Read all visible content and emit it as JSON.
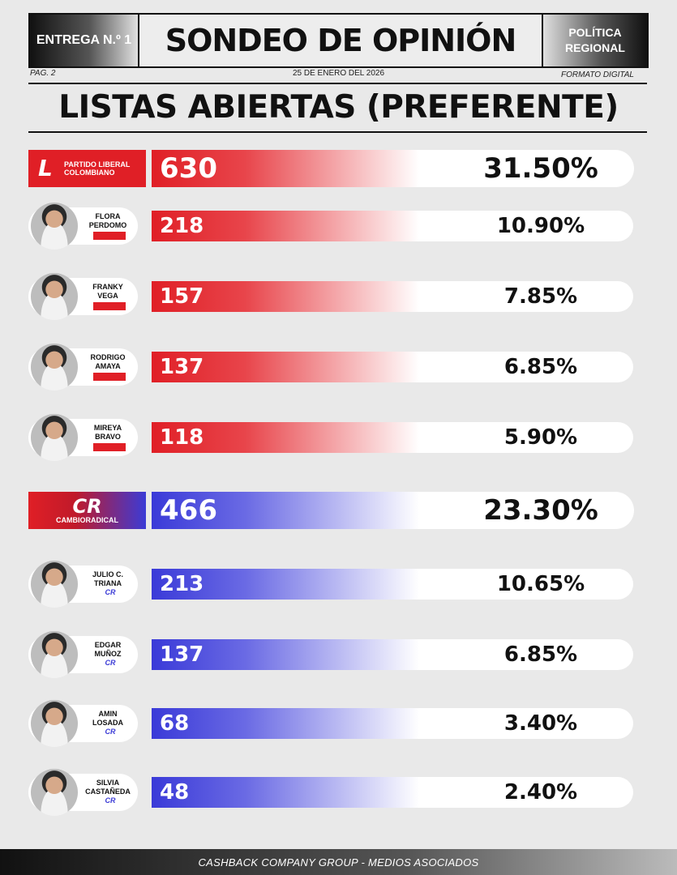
{
  "header": {
    "issue": "ENTREGA N.º 1",
    "title": "SONDEO DE OPINIÓN",
    "section_line1": "POLÍTICA",
    "section_line2": "REGIONAL",
    "page": "PAG. 2",
    "date": "25 DE ENERO DEL 2026",
    "format": "FORMATO DIGITAL"
  },
  "main_title": "LISTAS ABIERTAS (PREFERENTE)",
  "logos": {
    "liberal_line1": "PARTIDO LIBERAL",
    "liberal_line2": "COLOMBIANO",
    "liberal_mark": "L",
    "cambio_mark": "CR",
    "cambio_name": "CAMBIORADICAL"
  },
  "colors": {
    "liberal": "#e01f26",
    "cambio": "#3a3ad8"
  },
  "chart_data": {
    "type": "bar",
    "categories": [
      "PARTIDO LIBERAL COLOMBIANO",
      "FLORA PERDOMO",
      "FRANKY VEGA",
      "RODRIGO AMAYA",
      "MIREYA BRAVO",
      "CAMBIO RADICAL",
      "JULIO C. TRIANA",
      "EDGAR MUÑOZ",
      "AMIN LOSADA",
      "SILVIA CASTAÑEDA"
    ],
    "values": [
      630,
      218,
      157,
      137,
      118,
      466,
      213,
      137,
      68,
      48
    ],
    "percentages": [
      "31.50%",
      "10.90%",
      "7.85%",
      "6.85%",
      "5.90%",
      "23.30%",
      "10.65%",
      "6.85%",
      "3.40%",
      "2.40%"
    ],
    "rows": [
      {
        "kind": "party",
        "party": "liberal",
        "value": "630",
        "pct": "31.50%"
      },
      {
        "kind": "candidate",
        "party": "liberal",
        "first": "FLORA",
        "last": "PERDOMO",
        "value": "218",
        "pct": "10.90%"
      },
      {
        "kind": "candidate",
        "party": "liberal",
        "first": "FRANKY",
        "last": "VEGA",
        "value": "157",
        "pct": "7.85%"
      },
      {
        "kind": "candidate",
        "party": "liberal",
        "first": "RODRIGO",
        "last": "AMAYA",
        "value": "137",
        "pct": "6.85%"
      },
      {
        "kind": "candidate",
        "party": "liberal",
        "first": "MIREYA",
        "last": "BRAVO",
        "value": "118",
        "pct": "5.90%"
      },
      {
        "kind": "party",
        "party": "cambio",
        "value": "466",
        "pct": "23.30%"
      },
      {
        "kind": "candidate",
        "party": "cambio",
        "first": "JULIO C.",
        "last": "TRIANA",
        "value": "213",
        "pct": "10.65%"
      },
      {
        "kind": "candidate",
        "party": "cambio",
        "first": "EDGAR",
        "last": "MUÑOZ",
        "value": "137",
        "pct": "6.85%"
      },
      {
        "kind": "candidate",
        "party": "cambio",
        "first": "AMIN",
        "last": "LOSADA",
        "value": "68",
        "pct": "3.40%"
      },
      {
        "kind": "candidate",
        "party": "cambio",
        "first": "SILVIA",
        "last": "CASTAÑEDA",
        "value": "48",
        "pct": "2.40%"
      }
    ]
  },
  "footer": "CASHBACK COMPANY GROUP - MEDIOS ASOCIADOS"
}
